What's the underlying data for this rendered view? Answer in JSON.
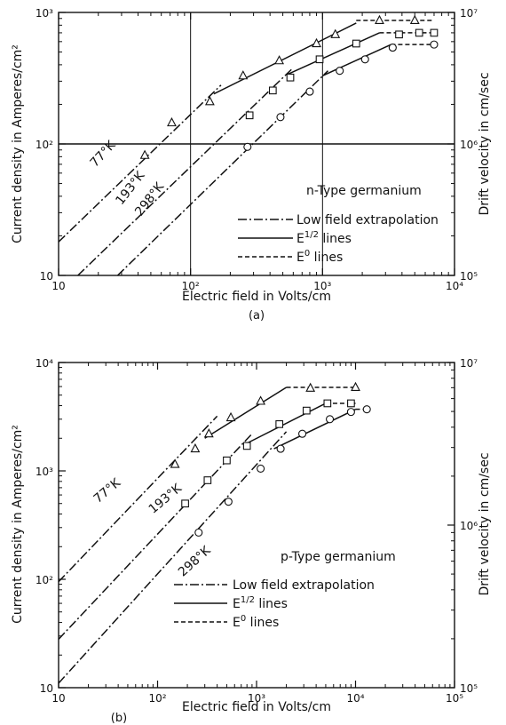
{
  "chart_data": [
    {
      "panel": "(a)",
      "type": "line",
      "title": "n-Type germanium",
      "xlabel": "Electric field in Volts/cm",
      "ylabel": "Current density in Amperes/cm²",
      "ylabel_right": "Drift velocity in cm/sec",
      "x_scale": "log",
      "y_scale": "log",
      "xlim": [
        10,
        10000
      ],
      "ylim": [
        10,
        1000
      ],
      "y2lim": [
        100000,
        10000000
      ],
      "x_ticks": [
        "10",
        "10²",
        "10³",
        "10⁴"
      ],
      "y_ticks": [
        "10",
        "10²",
        "10³"
      ],
      "y2_ticks": [
        "10⁵",
        "10⁶",
        "10⁷"
      ],
      "ref_lines_x": [
        100,
        1000
      ],
      "ref_lines_y": [
        100
      ],
      "legend": [
        "Low field extrapolation",
        "E^1/2 lines",
        "E^0 lines"
      ],
      "series": [
        {
          "name": "77°K",
          "marker": "triangle",
          "low_field": [
            [
              10,
              18
            ],
            [
              170,
              280
            ]
          ],
          "e_half": [
            [
              150,
              240
            ],
            [
              1800,
              830
            ]
          ],
          "e_zero": [
            [
              1800,
              870
            ],
            [
              7000,
              870
            ]
          ],
          "points": [
            [
              45,
              82
            ],
            [
              72,
              145
            ],
            [
              140,
              210
            ],
            [
              250,
              330
            ],
            [
              470,
              430
            ],
            [
              900,
              580
            ],
            [
              1250,
              680
            ],
            [
              2700,
              870
            ],
            [
              5000,
              870
            ]
          ]
        },
        {
          "name": "193°K",
          "marker": "square",
          "low_field": [
            [
              14,
              10
            ],
            [
              600,
              380
            ]
          ],
          "e_half": [
            [
              550,
              340
            ],
            [
              2700,
              700
            ]
          ],
          "e_zero": [
            [
              2700,
              700
            ],
            [
              7000,
              700
            ]
          ],
          "points": [
            [
              280,
              165
            ],
            [
              420,
              255
            ],
            [
              570,
              320
            ],
            [
              950,
              440
            ],
            [
              1800,
              580
            ],
            [
              3800,
              680
            ],
            [
              5400,
              700
            ],
            [
              7000,
              700
            ]
          ]
        },
        {
          "name": "298°K",
          "marker": "circle",
          "low_field": [
            [
              28,
              10
            ],
            [
              1100,
              360
            ]
          ],
          "e_half": [
            [
              1000,
              330
            ],
            [
              3300,
              570
            ]
          ],
          "e_zero": [
            [
              3300,
              570
            ],
            [
              7000,
              570
            ]
          ],
          "points": [
            [
              270,
              95
            ],
            [
              480,
              160
            ],
            [
              800,
              250
            ],
            [
              1350,
              360
            ],
            [
              2100,
              440
            ],
            [
              3400,
              540
            ],
            [
              7000,
              570
            ]
          ]
        }
      ]
    },
    {
      "panel": "(b)",
      "type": "line",
      "title": "p-Type germanium",
      "xlabel": "Electric field in Volts/cm",
      "ylabel": "Current density in Amperes/cm²",
      "ylabel_right": "Drift velocity in cm/sec",
      "x_scale": "log",
      "y_scale": "log",
      "xlim": [
        10,
        100000
      ],
      "ylim": [
        10,
        10000
      ],
      "y2lim": [
        100000,
        10000000
      ],
      "x_ticks": [
        "10",
        "10²",
        "10³",
        "10⁴",
        "10⁵"
      ],
      "y_ticks": [
        "10",
        "10²",
        "10³",
        "10⁴"
      ],
      "y2_ticks": [
        "10⁵",
        "10⁶",
        "10⁷"
      ],
      "legend": [
        "Low field extrapolation",
        "E^1/2 lines",
        "E^0 lines"
      ],
      "series": [
        {
          "name": "77°K",
          "marker": "triangle",
          "low_field": [
            [
              10,
              95
            ],
            [
              400,
              3200
            ]
          ],
          "e_half": [
            [
              300,
              2000
            ],
            [
              2000,
              5900
            ]
          ],
          "e_zero": [
            [
              2000,
              5900
            ],
            [
              10000,
              5900
            ]
          ],
          "points": [
            [
              150,
              1150
            ],
            [
              240,
              1600
            ],
            [
              330,
              2200
            ],
            [
              550,
              3100
            ],
            [
              1100,
              4400
            ],
            [
              3500,
              5800
            ],
            [
              10000,
              5900
            ]
          ]
        },
        {
          "name": "193°K",
          "marker": "square",
          "low_field": [
            [
              10,
              28
            ],
            [
              900,
              2200
            ]
          ],
          "e_half": [
            [
              800,
              1800
            ],
            [
              5000,
              4200
            ]
          ],
          "e_zero": [
            [
              5000,
              4200
            ],
            [
              10000,
              4200
            ]
          ],
          "points": [
            [
              190,
              500
            ],
            [
              320,
              820
            ],
            [
              500,
              1250
            ],
            [
              800,
              1700
            ],
            [
              1700,
              2700
            ],
            [
              3200,
              3600
            ],
            [
              5200,
              4200
            ],
            [
              9000,
              4200
            ]
          ]
        },
        {
          "name": "298°K",
          "marker": "circle",
          "low_field": [
            [
              10,
              11
            ],
            [
              2000,
              2300
            ]
          ],
          "e_half": [
            [
              1500,
              1600
            ],
            [
              10000,
              3700
            ]
          ],
          "e_zero": [
            [
              10000,
              3700
            ],
            [
              13000,
              3700
            ]
          ],
          "points": [
            [
              260,
              270
            ],
            [
              520,
              520
            ],
            [
              1100,
              1050
            ],
            [
              1750,
              1600
            ],
            [
              2900,
              2200
            ],
            [
              5500,
              3000
            ],
            [
              9000,
              3500
            ],
            [
              13000,
              3700
            ]
          ]
        }
      ]
    }
  ],
  "captions": {
    "a": "(a)",
    "b": "(b)"
  }
}
